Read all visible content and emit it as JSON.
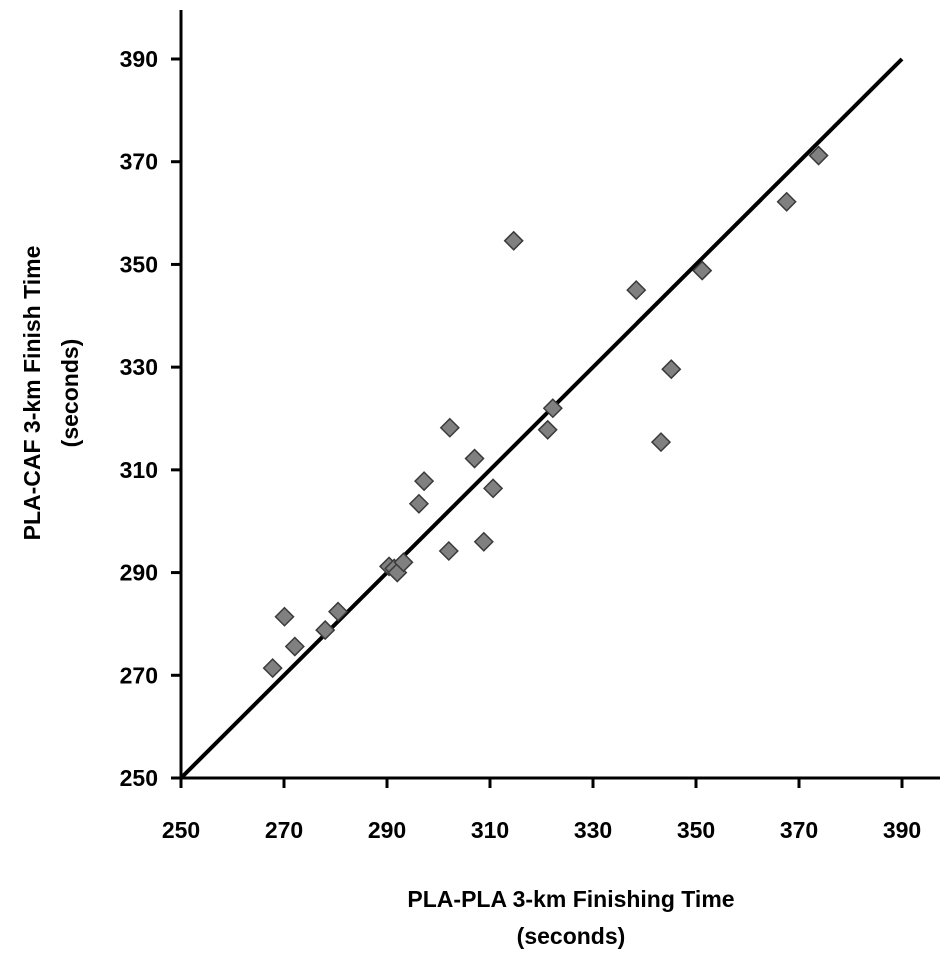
{
  "chart_data": {
    "type": "scatter",
    "title": "",
    "xlabel": [
      "PLA-PLA 3-km Finishing Time",
      "(seconds)"
    ],
    "ylabel": [
      "PLA-CAF 3-km Finish Time",
      "(seconds)"
    ],
    "xlim": [
      250,
      390
    ],
    "ylim": [
      250,
      390
    ],
    "x_ticks": [
      250,
      270,
      290,
      310,
      330,
      350,
      370,
      390
    ],
    "y_ticks": [
      250,
      270,
      290,
      310,
      330,
      350,
      370,
      390
    ],
    "x_tick_labels": [
      "250",
      "270",
      "290",
      "310",
      "330",
      "350",
      "370",
      "390"
    ],
    "y_tick_labels": [
      "250",
      "270",
      "290",
      "310",
      "330",
      "350",
      "370",
      "390"
    ],
    "grid": false,
    "legend": "none",
    "reference_line": {
      "x": [
        250,
        390
      ],
      "y": [
        250,
        390
      ],
      "label": "line of identity"
    },
    "series": [
      {
        "marker": "diamond",
        "color": "#808080",
        "points": [
          {
            "x": 267.8,
            "y": 271.4
          },
          {
            "x": 270.1,
            "y": 281.4
          },
          {
            "x": 272.1,
            "y": 275.6
          },
          {
            "x": 278.0,
            "y": 278.8
          },
          {
            "x": 280.5,
            "y": 282.4
          },
          {
            "x": 290.4,
            "y": 291.2
          },
          {
            "x": 291.4,
            "y": 290.8
          },
          {
            "x": 292.0,
            "y": 290.0
          },
          {
            "x": 293.2,
            "y": 292.0
          },
          {
            "x": 296.2,
            "y": 303.4
          },
          {
            "x": 297.2,
            "y": 307.8
          },
          {
            "x": 302.0,
            "y": 294.2
          },
          {
            "x": 302.2,
            "y": 318.2
          },
          {
            "x": 307.0,
            "y": 312.2
          },
          {
            "x": 308.8,
            "y": 296.0
          },
          {
            "x": 310.6,
            "y": 306.4
          },
          {
            "x": 314.6,
            "y": 354.6
          },
          {
            "x": 321.2,
            "y": 317.8
          },
          {
            "x": 322.2,
            "y": 322.0
          },
          {
            "x": 338.4,
            "y": 345.0
          },
          {
            "x": 343.2,
            "y": 315.4
          },
          {
            "x": 345.2,
            "y": 329.6
          },
          {
            "x": 351.2,
            "y": 348.8
          },
          {
            "x": 367.6,
            "y": 362.2
          },
          {
            "x": 373.8,
            "y": 371.2
          }
        ]
      }
    ]
  },
  "colors": {
    "marker_fill": "#808080",
    "marker_stroke": "#3a3a3a",
    "axis": "#000000",
    "line": "#000000"
  }
}
